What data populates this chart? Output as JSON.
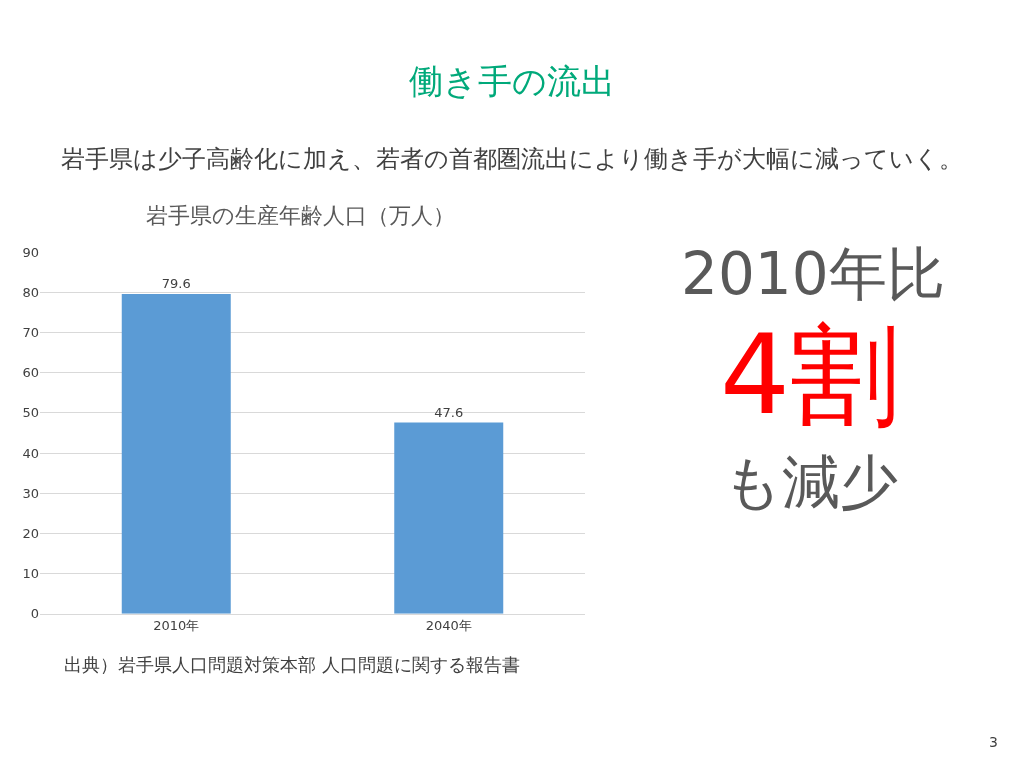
{
  "chart_data": {
    "type": "bar",
    "title": "働き手の流出",
    "subtitle": "岩手県は少子高齢化に加え、若者の首都圏流出により働き手が大幅に減っていく。",
    "annotations": [
      "岩手県の生産年齢人口（万人）",
      "2010年比",
      "4割",
      "も減少",
      "出典）岩手県人口問題対策本部 人口問題に関する報告書",
      "3"
    ],
    "categories": [
      "2010年",
      "2040年"
    ],
    "values": [
      79.6,
      47.6
    ],
    "color": "#5b9bd5",
    "ylim": [
      0,
      90
    ],
    "yticks": [
      0,
      10,
      20,
      30,
      40,
      50,
      60,
      70,
      80,
      90
    ],
    "grid": "y",
    "data_labels": true,
    "legend": false
  }
}
